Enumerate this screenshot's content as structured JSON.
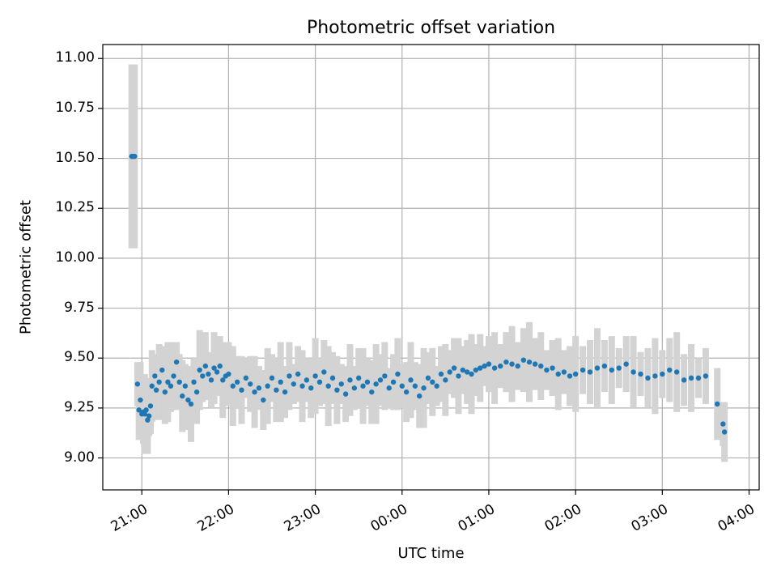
{
  "chart_data": {
    "type": "scatter",
    "title": "Photometric offset variation",
    "xlabel": "UTC time",
    "ylabel": "Photometric offset",
    "xlim": [
      "20:33",
      "04:07"
    ],
    "ylim": [
      8.84,
      11.07
    ],
    "grid": true,
    "yticks": [
      "9.00",
      "9.25",
      "9.50",
      "9.75",
      "10.00",
      "10.25",
      "10.50",
      "10.75",
      "11.00"
    ],
    "xticks": [
      "21:00",
      "22:00",
      "23:00",
      "00:00",
      "01:00",
      "02:00",
      "03:00",
      "04:00"
    ],
    "colors": {
      "point": "#1f77b4",
      "errorbar": "#d3d3d3",
      "grid": "#b0b0b0"
    },
    "series": [
      {
        "x": [
          "20:53",
          "20:54",
          "20:55",
          "20:57",
          "20:58",
          "20:59",
          "21:00",
          "21:01",
          "21:02",
          "21:03",
          "21:04",
          "21:05",
          "21:06",
          "21:07",
          "21:09",
          "21:10",
          "21:12",
          "21:14",
          "21:16",
          "21:18",
          "21:20",
          "21:22",
          "21:24",
          "21:26",
          "21:28",
          "21:30",
          "21:32",
          "21:34",
          "21:36",
          "21:38",
          "21:40",
          "21:42",
          "21:44",
          "21:46",
          "21:48",
          "21:50",
          "21:52",
          "21:54",
          "21:56",
          "21:58",
          "22:00",
          "22:03",
          "22:06",
          "22:09",
          "22:12",
          "22:15",
          "22:18",
          "22:21",
          "22:24",
          "22:27",
          "22:30",
          "22:33",
          "22:36",
          "22:39",
          "22:42",
          "22:45",
          "22:48",
          "22:51",
          "22:54",
          "22:57",
          "23:00",
          "23:03",
          "23:06",
          "23:09",
          "23:12",
          "23:15",
          "23:18",
          "23:21",
          "23:24",
          "23:27",
          "23:30",
          "23:33",
          "23:36",
          "23:39",
          "23:42",
          "23:45",
          "23:48",
          "23:51",
          "23:54",
          "23:57",
          "00:00",
          "00:03",
          "00:06",
          "00:09",
          "00:12",
          "00:15",
          "00:18",
          "00:21",
          "00:24",
          "00:27",
          "00:30",
          "00:33",
          "00:36",
          "00:39",
          "00:42",
          "00:45",
          "00:48",
          "00:51",
          "00:54",
          "00:57",
          "01:00",
          "01:04",
          "01:08",
          "01:12",
          "01:16",
          "01:20",
          "01:24",
          "01:28",
          "01:32",
          "01:36",
          "01:40",
          "01:44",
          "01:48",
          "01:52",
          "01:56",
          "02:00",
          "02:05",
          "02:10",
          "02:15",
          "02:20",
          "02:25",
          "02:30",
          "02:35",
          "02:40",
          "02:45",
          "02:50",
          "02:55",
          "03:00",
          "03:05",
          "03:10",
          "03:15",
          "03:20",
          "03:25",
          "03:30",
          "03:38",
          "03:42",
          "03:43"
        ],
        "y": [
          10.51,
          10.51,
          10.51,
          9.37,
          9.24,
          9.29,
          9.22,
          9.23,
          9.22,
          9.24,
          9.19,
          9.21,
          9.26,
          9.36,
          9.41,
          9.34,
          9.38,
          9.44,
          9.33,
          9.38,
          9.36,
          9.41,
          9.48,
          9.38,
          9.31,
          9.36,
          9.29,
          9.27,
          9.38,
          9.33,
          9.44,
          9.41,
          9.46,
          9.42,
          9.39,
          9.45,
          9.43,
          9.46,
          9.39,
          9.41,
          9.42,
          9.36,
          9.38,
          9.34,
          9.4,
          9.37,
          9.33,
          9.35,
          9.29,
          9.36,
          9.4,
          9.34,
          9.38,
          9.33,
          9.41,
          9.37,
          9.42,
          9.36,
          9.39,
          9.35,
          9.41,
          9.38,
          9.43,
          9.36,
          9.4,
          9.34,
          9.37,
          9.32,
          9.39,
          9.35,
          9.4,
          9.36,
          9.38,
          9.33,
          9.37,
          9.39,
          9.41,
          9.35,
          9.38,
          9.42,
          9.36,
          9.33,
          9.39,
          9.36,
          9.31,
          9.35,
          9.4,
          9.38,
          9.36,
          9.42,
          9.39,
          9.43,
          9.45,
          9.41,
          9.44,
          9.43,
          9.42,
          9.44,
          9.45,
          9.46,
          9.47,
          9.45,
          9.46,
          9.48,
          9.47,
          9.46,
          9.49,
          9.48,
          9.47,
          9.46,
          9.44,
          9.45,
          9.42,
          9.43,
          9.41,
          9.42,
          9.44,
          9.43,
          9.45,
          9.46,
          9.44,
          9.45,
          9.47,
          9.43,
          9.42,
          9.4,
          9.41,
          9.42,
          9.44,
          9.43,
          9.39,
          9.4,
          9.4,
          9.41,
          9.27,
          9.17,
          9.13
        ]
      }
    ]
  }
}
